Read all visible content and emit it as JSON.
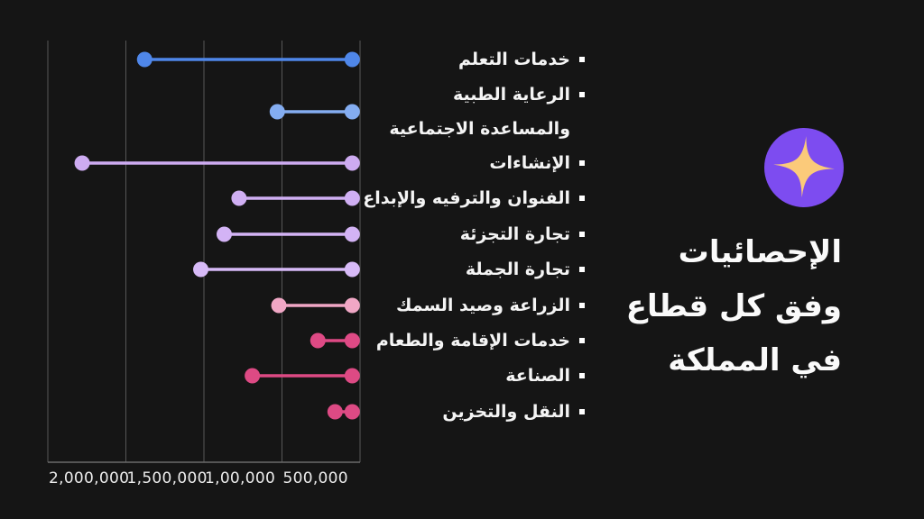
{
  "slide": {
    "background": "#151515",
    "title": {
      "lines": [
        "الإحصائيات",
        "وفق كل قطاع",
        "في المملكة"
      ]
    },
    "badge": {
      "icon": "sparkle-icon",
      "circle_color": "#7d4cf0",
      "star_color": "#fbca7a"
    }
  },
  "chart_data": {
    "type": "dumbbell",
    "orientation": "horizontal-rtl",
    "title": "",
    "xlabel": "",
    "ylabel": "",
    "grid": true,
    "x_axis": {
      "min": 0,
      "max": 2000000,
      "direction": "values-increase-leftward",
      "ticks": [
        {
          "label": "2,000,000",
          "value": 2000000
        },
        {
          "label": "1,500,000",
          "value": 1500000
        },
        {
          "label": "1,00,000",
          "value": 1000000
        },
        {
          "label": "500,000",
          "value": 500000
        }
      ]
    },
    "categories": [
      {
        "label_lines": [
          "خدمات التعلم"
        ],
        "start": 1380000,
        "end": 50000,
        "color": "#4f87e9"
      },
      {
        "label_lines": [
          "الرعاية الطبية",
          "والمساعدة الاجتماعية"
        ],
        "start": 530000,
        "end": 50000,
        "color": "#84adf1"
      },
      {
        "label_lines": [
          "الإنشاءات"
        ],
        "start": 1780000,
        "end": 50000,
        "color": "#cdabf1"
      },
      {
        "label_lines": [
          "الفنوان والترفيه والإبداع"
        ],
        "start": 775000,
        "end": 50000,
        "color": "#d0aff3"
      },
      {
        "label_lines": [
          "تجارة التجزئة"
        ],
        "start": 870000,
        "end": 50000,
        "color": "#d3b3f5"
      },
      {
        "label_lines": [
          "تجارة الجملة"
        ],
        "start": 1020000,
        "end": 50000,
        "color": "#d7baf7"
      },
      {
        "label_lines": [
          "الزراعة وصيد السمك"
        ],
        "start": 520000,
        "end": 50000,
        "color": "#f0a7c5"
      },
      {
        "label_lines": [
          "خدمات الإقامة والطعام"
        ],
        "start": 270000,
        "end": 50000,
        "color": "#de4a85"
      },
      {
        "label_lines": [
          "الصناعة"
        ],
        "start": 690000,
        "end": 50000,
        "color": "#dd4a84"
      },
      {
        "label_lines": [
          "النقل والتخزين"
        ],
        "start": 160000,
        "end": 50000,
        "color": "#dd4a84"
      }
    ],
    "style": {
      "gridline_color": "#575757",
      "baseline_color": "#6b6b6b",
      "bullet_color": "#ffffff",
      "axis_text_color": "#ececec",
      "label_text_color": "#f4f4f4"
    }
  }
}
